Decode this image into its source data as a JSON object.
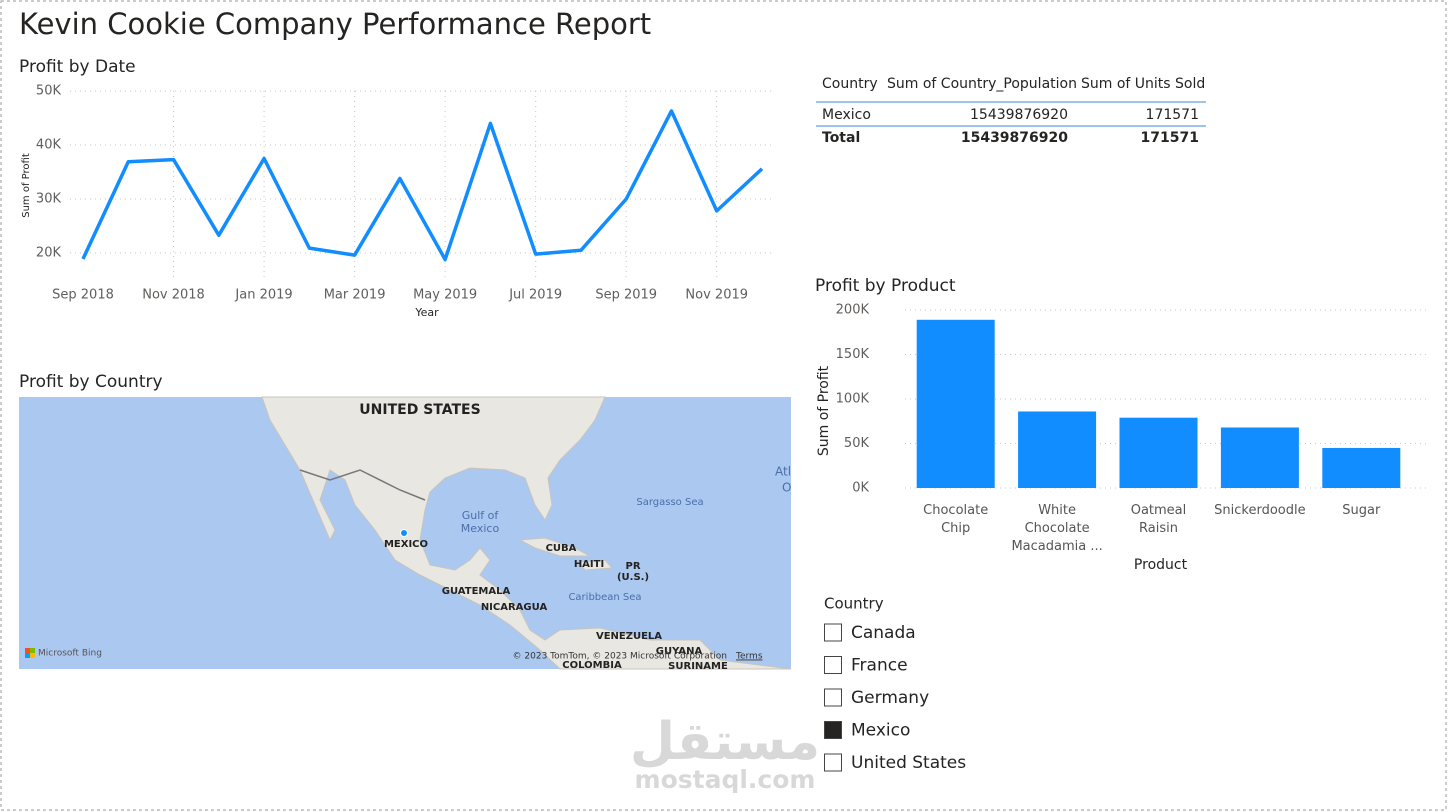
{
  "title": "Kevin Cookie Company Performance Report",
  "chart_data": [
    {
      "type": "line",
      "title": "Profit by Date",
      "x_label": "Year",
      "y_label": "Sum of Profit",
      "categories": [
        "Sep 2018",
        null,
        "Nov 2018",
        null,
        "Jan 2019",
        null,
        "Mar 2019",
        null,
        "May 2019",
        null,
        "Jul 2019",
        null,
        "Sep 2019",
        null,
        "Nov 2019",
        null
      ],
      "values": [
        18900,
        36900,
        37300,
        23300,
        37500,
        20900,
        19600,
        33800,
        18800,
        44000,
        19800,
        20500,
        30000,
        46300,
        27800,
        35600
      ],
      "color": "#118dff",
      "ylim": [
        15000,
        50000
      ],
      "yticks": [
        {
          "value": 20000,
          "label": "20K"
        },
        {
          "value": 30000,
          "label": "30K"
        },
        {
          "value": 40000,
          "label": "40K"
        },
        {
          "value": 50000,
          "label": "50K"
        }
      ],
      "grid": true
    },
    {
      "type": "bar",
      "title": "Profit by Product",
      "x_label": "Product",
      "y_label": "Sum of Profit",
      "categories": [
        "Chocolate Chip",
        "White Chocolate Macadamia ...",
        "Oatmeal Raisin",
        "Snickerdoodle",
        "Sugar"
      ],
      "values": [
        189000,
        86000,
        79000,
        68000,
        45000
      ],
      "color": "#118dff",
      "ylim": [
        0,
        200000
      ],
      "yticks": [
        {
          "value": 0,
          "label": "0K"
        },
        {
          "value": 50000,
          "label": "50K"
        },
        {
          "value": 100000,
          "label": "100K"
        },
        {
          "value": 150000,
          "label": "150K"
        },
        {
          "value": 200000,
          "label": "200K"
        }
      ],
      "grid": true
    }
  ],
  "table": {
    "columns": [
      "Country",
      "Sum of Country_Population",
      "Sum of Units Sold"
    ],
    "rows": [
      [
        "Mexico",
        15439876920,
        171571
      ]
    ],
    "total": [
      "Total",
      15439876920,
      171571
    ]
  },
  "map": {
    "title": "Profit by Country",
    "labels": [
      "UNITED STATES",
      "Gulf of",
      "Mexico",
      "Sargasso Sea",
      "MEXICO",
      "CUBA",
      "HAITI",
      "PR",
      "(U.S.)",
      "GUATEMALA",
      "NICARAGUA",
      "Caribbean Sea",
      "VENEZUELA",
      "GUYANA",
      "SURINAME",
      "COLOMBIA",
      "Atl",
      "O"
    ],
    "bing": "Microsoft Bing",
    "attribution": "© 2023 TomTom, © 2023 Microsoft Corporation",
    "terms": "Terms"
  },
  "slicer": {
    "title": "Country",
    "items": [
      {
        "label": "Canada",
        "checked": false
      },
      {
        "label": "France",
        "checked": false
      },
      {
        "label": "Germany",
        "checked": false
      },
      {
        "label": "Mexico",
        "checked": true
      },
      {
        "label": "United States",
        "checked": false
      }
    ]
  },
  "watermark": {
    "arabic": "مستقل",
    "latin": "mostaql.com"
  }
}
